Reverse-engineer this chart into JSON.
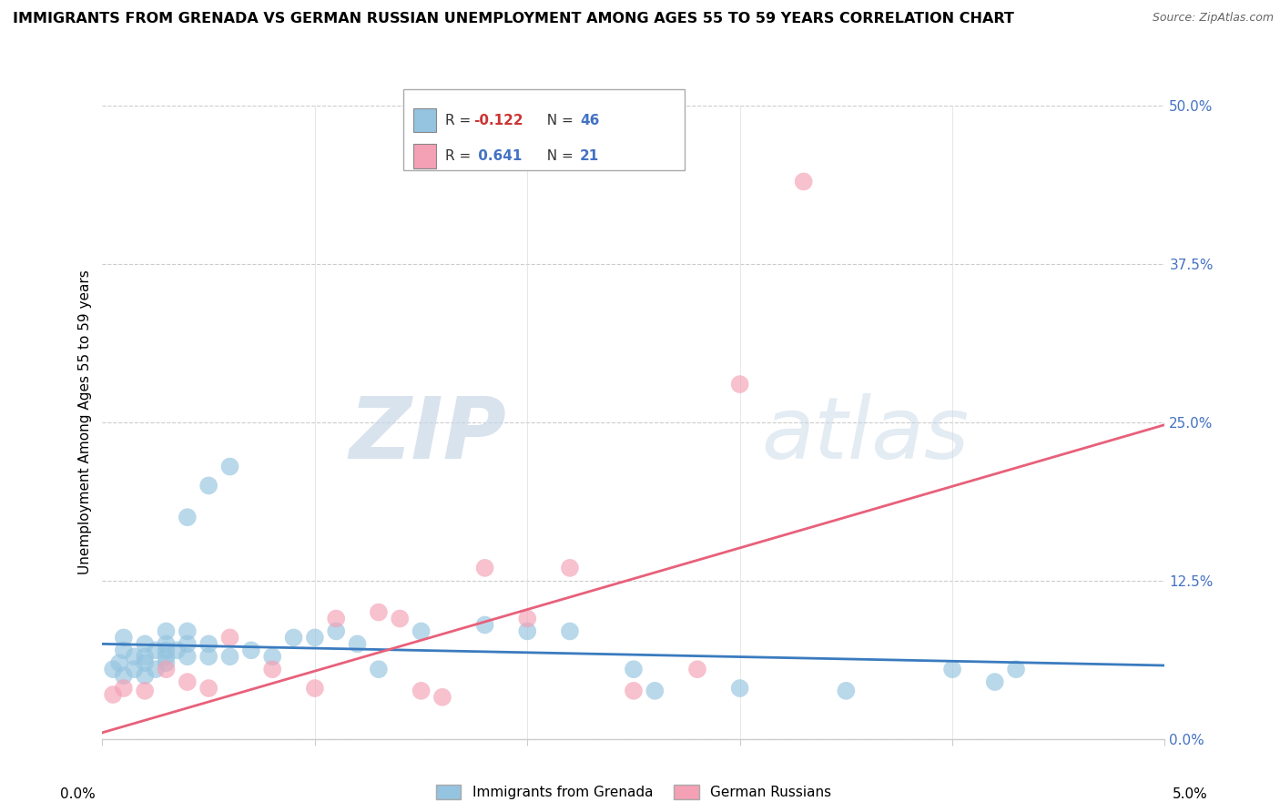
{
  "title": "IMMIGRANTS FROM GRENADA VS GERMAN RUSSIAN UNEMPLOYMENT AMONG AGES 55 TO 59 YEARS CORRELATION CHART",
  "source": "Source: ZipAtlas.com",
  "ylabel": "Unemployment Among Ages 55 to 59 years",
  "ytick_labels": [
    "0.0%",
    "12.5%",
    "25.0%",
    "37.5%",
    "50.0%"
  ],
  "ytick_values": [
    0.0,
    0.125,
    0.25,
    0.375,
    0.5
  ],
  "xlim": [
    0.0,
    0.05
  ],
  "ylim": [
    0.0,
    0.5
  ],
  "legend_label1": "Immigrants from Grenada",
  "legend_label2": "German Russians",
  "R1": "-0.122",
  "N1": "46",
  "R2": "0.641",
  "N2": "21",
  "color_blue": "#94c4e0",
  "color_pink": "#f4a0b5",
  "line_blue": "#3a7bbf",
  "line_pink": "#e8607a",
  "watermark_zip": "ZIP",
  "watermark_atlas": "atlas",
  "blue_dots_x": [
    0.0005,
    0.0008,
    0.001,
    0.001,
    0.001,
    0.0015,
    0.0015,
    0.002,
    0.002,
    0.002,
    0.002,
    0.0025,
    0.0025,
    0.003,
    0.003,
    0.003,
    0.003,
    0.003,
    0.0035,
    0.004,
    0.004,
    0.004,
    0.004,
    0.005,
    0.005,
    0.005,
    0.006,
    0.006,
    0.007,
    0.008,
    0.009,
    0.01,
    0.011,
    0.012,
    0.013,
    0.015,
    0.018,
    0.02,
    0.022,
    0.025,
    0.026,
    0.03,
    0.035,
    0.04,
    0.042,
    0.043
  ],
  "blue_dots_y": [
    0.055,
    0.06,
    0.05,
    0.07,
    0.08,
    0.055,
    0.065,
    0.05,
    0.06,
    0.065,
    0.075,
    0.055,
    0.07,
    0.06,
    0.065,
    0.07,
    0.075,
    0.085,
    0.07,
    0.065,
    0.075,
    0.085,
    0.175,
    0.065,
    0.075,
    0.2,
    0.065,
    0.215,
    0.07,
    0.065,
    0.08,
    0.08,
    0.085,
    0.075,
    0.055,
    0.085,
    0.09,
    0.085,
    0.085,
    0.055,
    0.038,
    0.04,
    0.038,
    0.055,
    0.045,
    0.055
  ],
  "pink_dots_x": [
    0.0005,
    0.001,
    0.002,
    0.003,
    0.004,
    0.005,
    0.006,
    0.008,
    0.01,
    0.011,
    0.013,
    0.014,
    0.015,
    0.016,
    0.018,
    0.02,
    0.022,
    0.025,
    0.028,
    0.03,
    0.033
  ],
  "pink_dots_y": [
    0.035,
    0.04,
    0.038,
    0.055,
    0.045,
    0.04,
    0.08,
    0.055,
    0.04,
    0.095,
    0.1,
    0.095,
    0.038,
    0.033,
    0.135,
    0.095,
    0.135,
    0.038,
    0.055,
    0.28,
    0.44
  ],
  "blue_line_x": [
    0.0,
    0.05
  ],
  "blue_line_y": [
    0.075,
    0.058
  ],
  "pink_line_x": [
    0.0,
    0.05
  ],
  "pink_line_y": [
    0.005,
    0.248
  ]
}
